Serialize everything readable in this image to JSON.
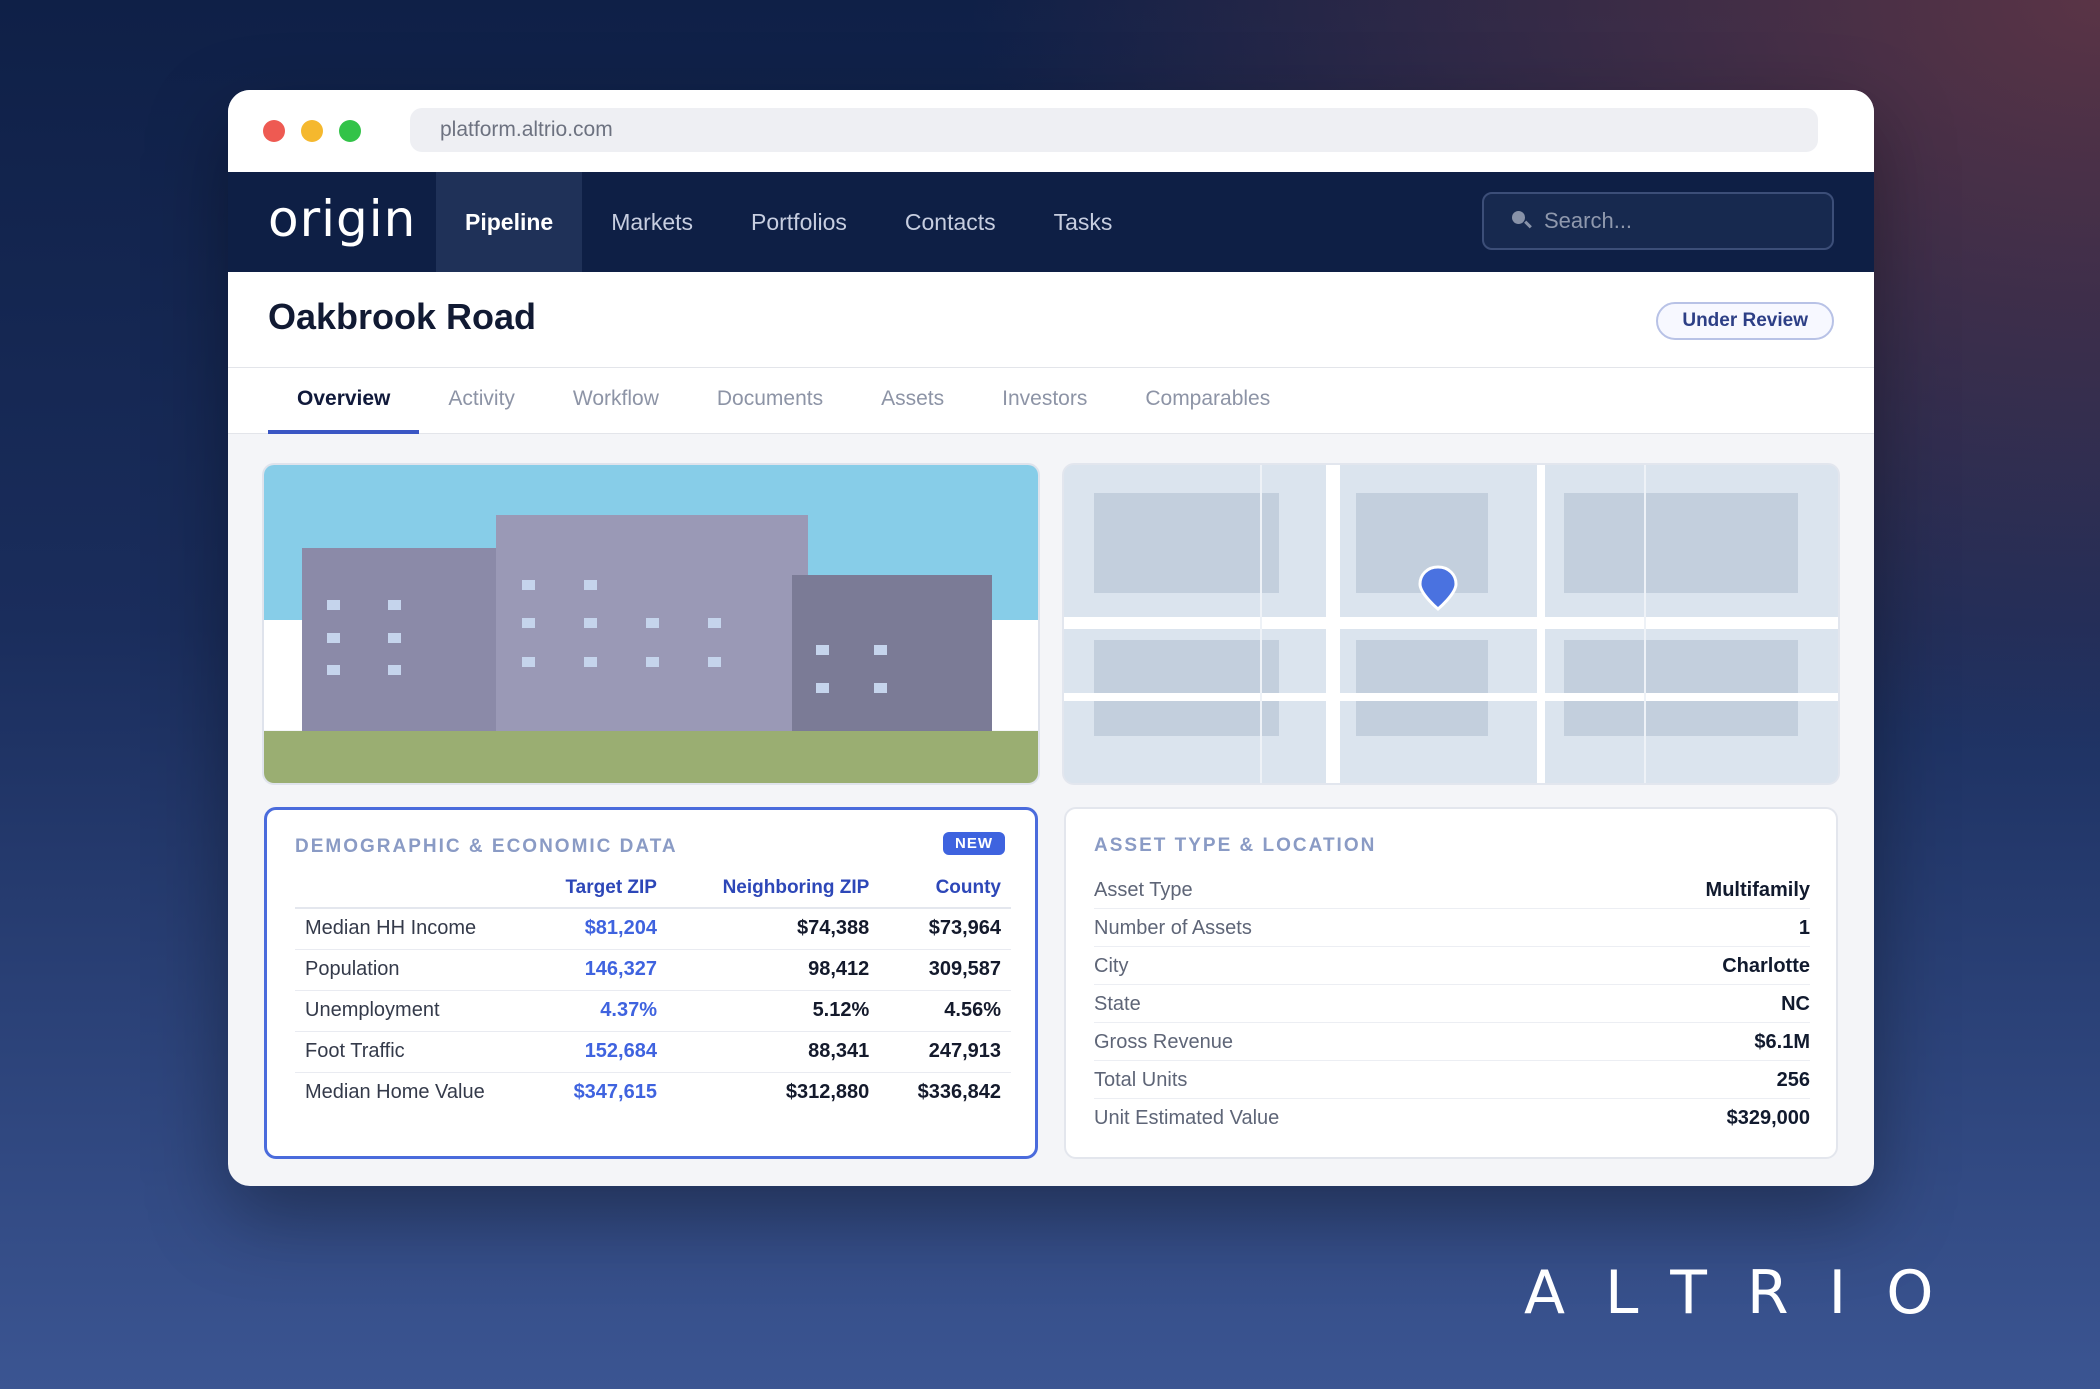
{
  "browser": {
    "url": "platform.altrio.com"
  },
  "nav": {
    "logo": "origin",
    "links": [
      "Pipeline",
      "Markets",
      "Portfolios",
      "Contacts",
      "Tasks"
    ],
    "active": "Pipeline",
    "search_placeholder": "Search..."
  },
  "property": {
    "title": "Oakbrook Road",
    "status": "Under Review"
  },
  "tabs": [
    "Overview",
    "Activity",
    "Workflow",
    "Documents",
    "Assets",
    "Investors",
    "Comparables"
  ],
  "active_tab": "Overview",
  "demographics": {
    "title": "DEMOGRAPHIC & ECONOMIC DATA",
    "badge": "NEW",
    "columns": [
      "Target ZIP",
      "Neighboring ZIP",
      "County"
    ],
    "rows": [
      {
        "label": "Median HH Income",
        "target": "$81,204",
        "neighboring": "$74,388",
        "county": "$73,964"
      },
      {
        "label": "Population",
        "target": "146,327",
        "neighboring": "98,412",
        "county": "309,587"
      },
      {
        "label": "Unemployment",
        "target": "4.37%",
        "neighboring": "5.12%",
        "county": "4.56%"
      },
      {
        "label": "Foot Traffic",
        "target": "152,684",
        "neighboring": "88,341",
        "county": "247,913"
      },
      {
        "label": "Median Home Value",
        "target": "$347,615",
        "neighboring": "$312,880",
        "county": "$336,842"
      }
    ]
  },
  "asset": {
    "title": "ASSET TYPE & LOCATION",
    "rows": [
      {
        "label": "Asset Type",
        "value": "Multifamily"
      },
      {
        "label": "Number of Assets",
        "value": "1"
      },
      {
        "label": "City",
        "value": "Charlotte"
      },
      {
        "label": "State",
        "value": "NC"
      },
      {
        "label": "Gross Revenue",
        "value": "$6.1M"
      },
      {
        "label": "Total Units",
        "value": "256"
      },
      {
        "label": "Unit Estimated Value",
        "value": "$329,000"
      }
    ]
  },
  "brand": {
    "wordmark": "ALTRIO"
  },
  "colors": {
    "accent": "#3e63df",
    "nav_bg": "#0e1f45",
    "map_pin": "#4a72e0"
  }
}
